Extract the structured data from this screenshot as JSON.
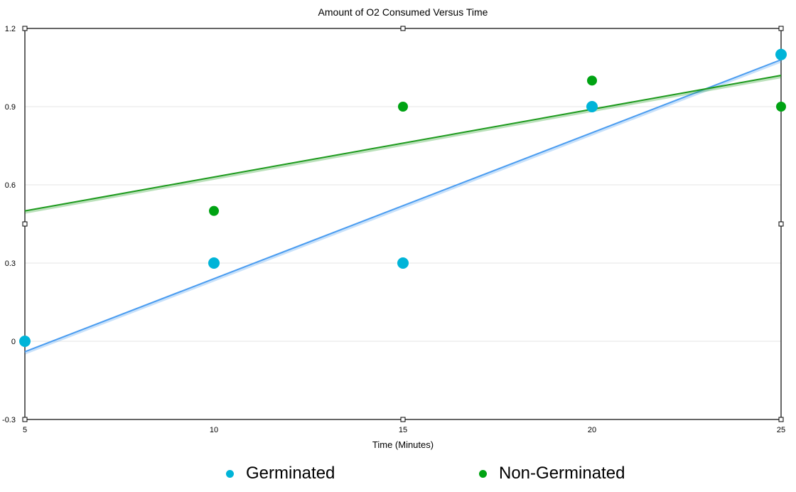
{
  "chart_data": {
    "type": "scatter",
    "title": "Amount of O2 Consumed Versus Time",
    "xlabel": "Time (Minutes)",
    "ylabel": "",
    "xlim": [
      5,
      25
    ],
    "ylim": [
      -0.3,
      1.2
    ],
    "x_ticks": [
      "5",
      "10",
      "15",
      "20",
      "25"
    ],
    "y_ticks": [
      "1.2",
      "0.9",
      "0.6",
      "0.3",
      "0",
      "-0.3"
    ],
    "grid": true,
    "legend": "bottom",
    "series": [
      {
        "name": "Germinated",
        "color": "#00b4d8",
        "trendline_color": "#4a9cf0",
        "trendline": true,
        "points": [
          {
            "x": 5,
            "y": 0
          },
          {
            "x": 10,
            "y": 0.3
          },
          {
            "x": 15,
            "y": 0.3
          },
          {
            "x": 20,
            "y": 0.9
          },
          {
            "x": 25,
            "y": 1.1
          }
        ]
      },
      {
        "name": "Non-Germinated",
        "color": "#00a313",
        "trendline_color": "#1d9a1d",
        "trendline": true,
        "points": [
          {
            "x": 10,
            "y": 0.5
          },
          {
            "x": 15,
            "y": 0.9
          },
          {
            "x": 20,
            "y": 1.0
          },
          {
            "x": 25,
            "y": 0.9
          }
        ]
      }
    ]
  }
}
